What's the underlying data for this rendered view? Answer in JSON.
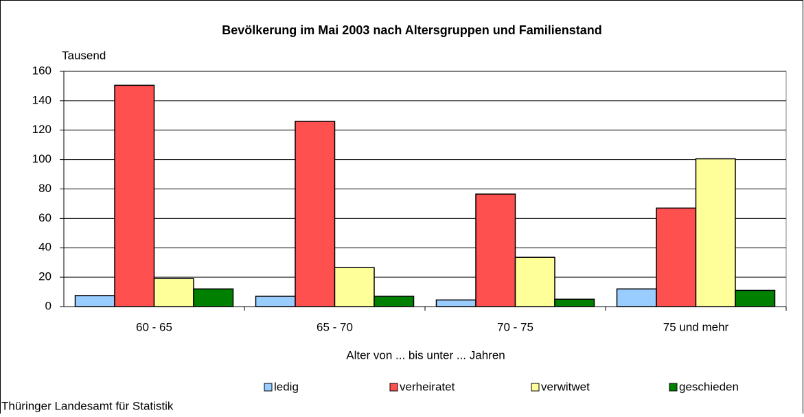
{
  "chart_data": {
    "type": "bar",
    "title": "Bevölkerung im Mai 2003 nach Altersgruppen und Familienstand",
    "y_label": "Tausend",
    "x_label": "Alter von ... bis unter ... Jahren",
    "source": "Thüringer Landesamt für Statistik",
    "categories": [
      "60 - 65",
      "65 - 70",
      "70 - 75",
      "75 und mehr"
    ],
    "series": [
      {
        "name": "ledig",
        "color": "#99ccff",
        "values": [
          7.5,
          7,
          4.5,
          12
        ]
      },
      {
        "name": "verheiratet",
        "color": "#ff5050",
        "values": [
          150.5,
          126,
          76.5,
          67
        ]
      },
      {
        "name": "verwitwet",
        "color": "#ffff99",
        "values": [
          19,
          26.5,
          33.5,
          100.5
        ]
      },
      {
        "name": "geschieden",
        "color": "#008000",
        "values": [
          12,
          7,
          5,
          11
        ]
      }
    ],
    "ylim": [
      0,
      160
    ],
    "yticks": [
      0,
      20,
      40,
      60,
      80,
      100,
      120,
      140,
      160
    ],
    "grid": true,
    "legend": "bottom"
  }
}
